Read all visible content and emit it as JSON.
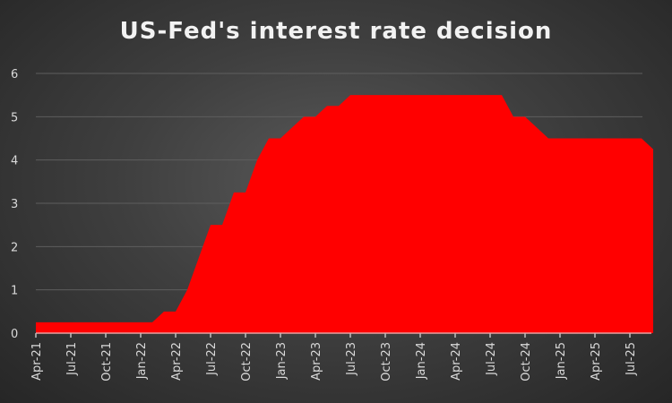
{
  "chart_data": {
    "type": "area",
    "title": "US-Fed's interest rate decision",
    "xlabel": "",
    "ylabel": "",
    "ylim": [
      0,
      6
    ],
    "yticks": [
      "0",
      "1",
      "2",
      "3",
      "4",
      "5",
      "6"
    ],
    "grid": true,
    "legend": "none",
    "fill_color": "#ff0000",
    "x_tick_labels": [
      "Apr-21",
      "Jul-21",
      "Oct-21",
      "Jan-22",
      "Apr-22",
      "Jul-22",
      "Oct-22",
      "Jan-23",
      "Apr-23",
      "Jul-23",
      "Oct-23",
      "Jan-24",
      "Apr-24",
      "Jul-24",
      "Oct-24",
      "Jan-25",
      "Apr-25",
      "Jul-25"
    ],
    "x": [
      "Apr-21",
      "May-21",
      "Jun-21",
      "Jul-21",
      "Aug-21",
      "Sep-21",
      "Oct-21",
      "Nov-21",
      "Dec-21",
      "Jan-22",
      "Feb-22",
      "Mar-22",
      "Apr-22",
      "May-22",
      "Jun-22",
      "Jul-22",
      "Aug-22",
      "Sep-22",
      "Oct-22",
      "Nov-22",
      "Dec-22",
      "Jan-23",
      "Feb-23",
      "Mar-23",
      "Apr-23",
      "May-23",
      "Jun-23",
      "Jul-23",
      "Aug-23",
      "Sep-23",
      "Oct-23",
      "Nov-23",
      "Dec-23",
      "Jan-24",
      "Feb-24",
      "Mar-24",
      "Apr-24",
      "May-24",
      "Jun-24",
      "Jul-24",
      "Aug-24",
      "Sep-24",
      "Oct-24",
      "Nov-24",
      "Dec-24",
      "Jan-25",
      "Feb-25",
      "Mar-25",
      "Apr-25",
      "May-25",
      "Jun-25",
      "Jul-25",
      "Aug-25",
      "Sep-25"
    ],
    "values": [
      0.25,
      0.25,
      0.25,
      0.25,
      0.25,
      0.25,
      0.25,
      0.25,
      0.25,
      0.25,
      0.25,
      0.5,
      0.5,
      1.0,
      1.75,
      2.5,
      2.5,
      3.25,
      3.25,
      4.0,
      4.5,
      4.5,
      4.75,
      5.0,
      5.0,
      5.25,
      5.25,
      5.5,
      5.5,
      5.5,
      5.5,
      5.5,
      5.5,
      5.5,
      5.5,
      5.5,
      5.5,
      5.5,
      5.5,
      5.5,
      5.5,
      5.0,
      5.0,
      4.75,
      4.5,
      4.5,
      4.5,
      4.5,
      4.5,
      4.5,
      4.5,
      4.5,
      4.5,
      4.25
    ]
  }
}
